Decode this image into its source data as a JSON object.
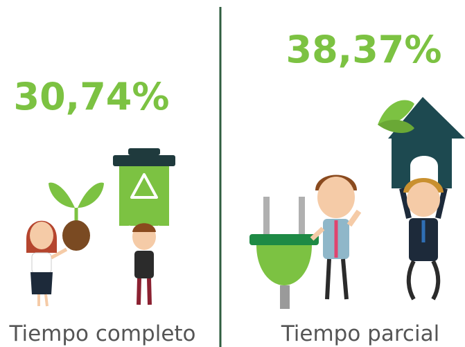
{
  "panels": [
    {
      "value": "30,74%",
      "label": "Tiempo completo"
    },
    {
      "value": "38,37%",
      "label": "Tiempo parcial"
    }
  ]
}
